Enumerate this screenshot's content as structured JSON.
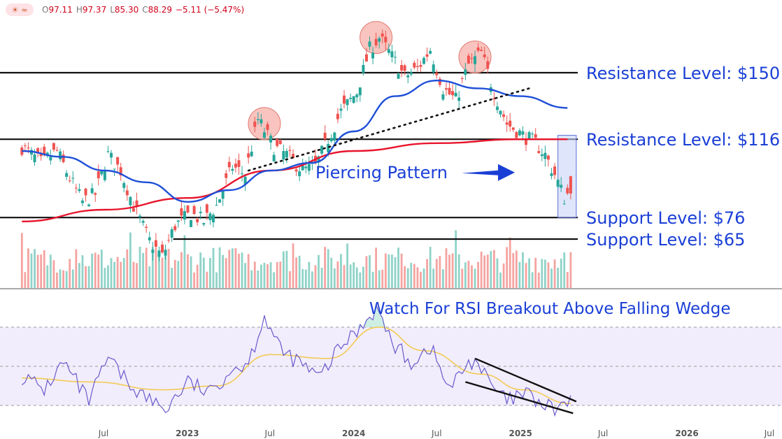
{
  "header": {
    "logo_icons": [
      "sun-icon",
      "wave-icon"
    ],
    "open_label": "O",
    "open": "97.11",
    "high_label": "H",
    "high": "97.37",
    "low_label": "L",
    "low": "85.30",
    "close_label": "C",
    "close": "88.29",
    "change": "−5.11 (−5.47%)"
  },
  "colors": {
    "up": "#26a69a",
    "down": "#ef5350",
    "ma_short": "#1e4fd8",
    "ma_long": "#e8142c",
    "annotation": "#1a3fd6",
    "rsi": "#6a5acd",
    "rsi_ma": "#f2c94c",
    "volume_up": "#8fd3c8",
    "volume_down": "#f5a3a0",
    "circle": "#f7b0aa"
  },
  "chart_data": [
    {
      "type": "candlestick",
      "x_axis": {
        "labels": [
          "Jul",
          "2023",
          "Jul",
          "2024",
          "Jul",
          "2025",
          "Jul",
          "2026",
          "Jul"
        ],
        "start": "2022-01",
        "end": "2026-07"
      },
      "y_range": [
        40,
        180
      ],
      "last_candle": {
        "open": 97.11,
        "high": 97.37,
        "low": 85.3,
        "close": 88.29,
        "change": -5.11,
        "change_pct": -5.47
      },
      "price_path": [
        [
          "2022-01-03",
          112
        ],
        [
          "2022-02-14",
          104
        ],
        [
          "2022-03-21",
          110
        ],
        [
          "2022-04-18",
          96
        ],
        [
          "2022-05-16",
          84
        ],
        [
          "2022-06-13",
          88
        ],
        [
          "2022-07-11",
          108
        ],
        [
          "2022-08-08",
          100
        ],
        [
          "2022-09-05",
          82
        ],
        [
          "2022-10-10",
          64
        ],
        [
          "2022-11-07",
          56
        ],
        [
          "2022-12-05",
          72
        ],
        [
          "2023-01-09",
          78
        ],
        [
          "2023-02-06",
          74
        ],
        [
          "2023-03-06",
          82
        ],
        [
          "2023-04-10",
          102
        ],
        [
          "2023-05-08",
          98
        ],
        [
          "2023-06-05",
          126
        ],
        [
          "2023-07-10",
          112
        ],
        [
          "2023-08-07",
          108
        ],
        [
          "2023-09-11",
          100
        ],
        [
          "2023-10-09",
          102
        ],
        [
          "2023-11-06",
          116
        ],
        [
          "2023-12-04",
          130
        ],
        [
          "2024-01-08",
          140
        ],
        [
          "2024-02-05",
          162
        ],
        [
          "2024-02-26",
          168
        ],
        [
          "2024-03-25",
          158
        ],
        [
          "2024-04-22",
          148
        ],
        [
          "2024-05-20",
          152
        ],
        [
          "2024-06-17",
          162
        ],
        [
          "2024-07-15",
          142
        ],
        [
          "2024-08-12",
          136
        ],
        [
          "2024-09-09",
          154
        ],
        [
          "2024-10-07",
          160
        ],
        [
          "2024-11-04",
          140
        ],
        [
          "2024-12-02",
          124
        ],
        [
          "2025-01-06",
          118
        ],
        [
          "2025-02-03",
          114
        ],
        [
          "2025-02-24",
          108
        ],
        [
          "2025-03-17",
          98
        ],
        [
          "2025-04-07",
          86
        ],
        [
          "2025-04-21",
          90
        ]
      ],
      "series": [
        {
          "name": "",
          "type": "line",
          "role": "short moving average",
          "points": [
            [
              "2022-01-03",
              110
            ],
            [
              "2022-04-04",
              107
            ],
            [
              "2022-07-04",
              100
            ],
            [
              "2022-10-03",
              94
            ],
            [
              "2023-01-02",
              84
            ],
            [
              "2023-04-03",
              90
            ],
            [
              "2023-07-03",
              100
            ],
            [
              "2023-10-02",
              104
            ],
            [
              "2024-01-01",
              120
            ],
            [
              "2024-04-01",
              138
            ],
            [
              "2024-07-01",
              146
            ],
            [
              "2024-10-01",
              142
            ],
            [
              "2025-01-01",
              138
            ],
            [
              "2025-04-14",
              132
            ]
          ]
        },
        {
          "name": "",
          "type": "line",
          "role": "long moving average",
          "points": [
            [
              "2022-01-03",
              74
            ],
            [
              "2022-07-04",
              80
            ],
            [
              "2023-01-02",
              86
            ],
            [
              "2023-07-03",
              100
            ],
            [
              "2024-01-01",
              110
            ],
            [
              "2024-07-01",
              114
            ],
            [
              "2025-01-01",
              116
            ],
            [
              "2025-04-14",
              116
            ]
          ]
        }
      ],
      "horizontal_lines": [
        {
          "label": "Resistance Level: $150",
          "value": 150
        },
        {
          "label": "Resistance Level: $116",
          "value": 116
        },
        {
          "label": "Support Level: $76",
          "value": 76
        },
        {
          "label": "Support Level: $65",
          "value": 65
        }
      ],
      "annotations": {
        "pattern_label": "Piercing Pattern",
        "trendline": [
          [
            "2023-05-15",
            100
          ],
          [
            "2025-01-20",
            142
          ]
        ],
        "highlight_circles": [
          [
            "2023-06-19",
            124
          ],
          [
            "2024-02-19",
            168
          ],
          [
            "2024-09-23",
            158
          ]
        ],
        "pattern_box": {
          "from": "2025-03-24",
          "to": "2025-04-21",
          "low": 76,
          "high": 118
        }
      },
      "volume": "bars below price, teal on up weeks, red on down weeks"
    },
    {
      "type": "line",
      "title": "Watch For RSI Breakout Above Falling Wedge",
      "y_range": [
        20,
        80
      ],
      "guide_levels": [
        30,
        50,
        70
      ],
      "series": [
        {
          "name": "",
          "role": "RSI",
          "points": [
            [
              "2022-01-03",
              45
            ],
            [
              "2022-02-21",
              38
            ],
            [
              "2022-04-04",
              52
            ],
            [
              "2022-05-30",
              32
            ],
            [
              "2022-07-11",
              54
            ],
            [
              "2022-08-22",
              42
            ],
            [
              "2022-10-03",
              34
            ],
            [
              "2022-11-14",
              28
            ],
            [
              "2023-01-02",
              42
            ],
            [
              "2023-02-20",
              36
            ],
            [
              "2023-04-03",
              48
            ],
            [
              "2023-05-15",
              52
            ],
            [
              "2023-06-19",
              76
            ],
            [
              "2023-07-24",
              58
            ],
            [
              "2023-09-04",
              52
            ],
            [
              "2023-10-16",
              44
            ],
            [
              "2023-12-04",
              60
            ],
            [
              "2024-01-15",
              70
            ],
            [
              "2024-02-19",
              80
            ],
            [
              "2024-03-25",
              62
            ],
            [
              "2024-05-06",
              52
            ],
            [
              "2024-06-17",
              60
            ],
            [
              "2024-07-29",
              38
            ],
            [
              "2024-09-02",
              50
            ],
            [
              "2024-09-23",
              54
            ],
            [
              "2024-10-28",
              40
            ],
            [
              "2024-12-02",
              32
            ],
            [
              "2025-01-13",
              36
            ],
            [
              "2025-02-17",
              30
            ],
            [
              "2025-03-17",
              28
            ],
            [
              "2025-04-21",
              32
            ]
          ]
        },
        {
          "name": "",
          "role": "RSI moving average",
          "points": [
            [
              "2022-01-03",
              44
            ],
            [
              "2022-06-06",
              42
            ],
            [
              "2022-11-07",
              38
            ],
            [
              "2023-03-06",
              40
            ],
            [
              "2023-07-03",
              56
            ],
            [
              "2023-11-06",
              54
            ],
            [
              "2024-02-26",
              70
            ],
            [
              "2024-06-03",
              58
            ],
            [
              "2024-10-07",
              46
            ],
            [
              "2025-01-06",
              38
            ],
            [
              "2025-04-21",
              31
            ]
          ]
        }
      ],
      "wedge": {
        "upper": [
          [
            "2024-09-23",
            54
          ],
          [
            "2025-04-21",
            32
          ]
        ],
        "lower": [
          [
            "2024-09-02",
            42
          ],
          [
            "2025-04-14",
            26
          ]
        ]
      }
    }
  ]
}
